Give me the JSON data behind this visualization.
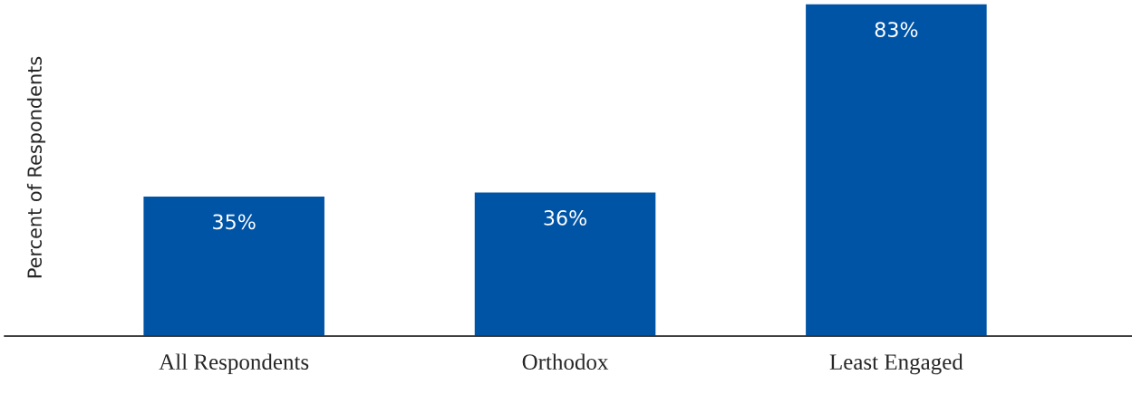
{
  "chart_data": {
    "type": "bar",
    "ylabel": "Percent of Respondents",
    "categories": [
      "All Respondents",
      "Orthodox",
      "Least Engaged"
    ],
    "values": [
      35,
      36,
      83
    ],
    "value_labels": [
      "35%",
      "36%",
      "83%"
    ],
    "color": "#0054a6",
    "grid": false,
    "legend": false
  }
}
